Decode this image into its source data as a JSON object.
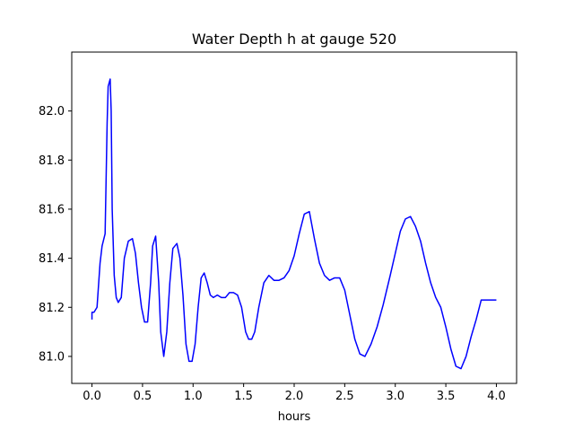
{
  "chart_data": {
    "type": "line",
    "title": "Water Depth h at gauge 520",
    "xlabel": "hours",
    "ylabel": "",
    "xlim": [
      -0.2,
      4.2
    ],
    "ylim": [
      80.89,
      82.24
    ],
    "xticks": [
      0.0,
      0.5,
      1.0,
      1.5,
      2.0,
      2.5,
      3.0,
      3.5,
      4.0
    ],
    "xtick_labels": [
      "0.0",
      "0.5",
      "1.0",
      "1.5",
      "2.0",
      "2.5",
      "3.0",
      "3.5",
      "4.0"
    ],
    "yticks": [
      81.0,
      81.2,
      81.4,
      81.6,
      81.8,
      82.0
    ],
    "ytick_labels": [
      "81.0",
      "81.2",
      "81.4",
      "81.6",
      "81.8",
      "82.0"
    ],
    "grid": false,
    "color": "#0000ff",
    "series": [
      {
        "name": "",
        "x": [
          0.0,
          0.0,
          0.02,
          0.05,
          0.08,
          0.1,
          0.13,
          0.15,
          0.16,
          0.18,
          0.19,
          0.2,
          0.22,
          0.24,
          0.26,
          0.29,
          0.32,
          0.36,
          0.4,
          0.43,
          0.46,
          0.49,
          0.52,
          0.55,
          0.58,
          0.6,
          0.63,
          0.66,
          0.68,
          0.71,
          0.74,
          0.77,
          0.8,
          0.84,
          0.87,
          0.9,
          0.93,
          0.96,
          0.99,
          1.02,
          1.05,
          1.08,
          1.11,
          1.14,
          1.17,
          1.2,
          1.24,
          1.28,
          1.32,
          1.36,
          1.4,
          1.44,
          1.48,
          1.52,
          1.55,
          1.58,
          1.61,
          1.65,
          1.7,
          1.75,
          1.8,
          1.85,
          1.9,
          1.95,
          2.0,
          2.05,
          2.1,
          2.15,
          2.2,
          2.25,
          2.3,
          2.35,
          2.4,
          2.45,
          2.5,
          2.55,
          2.6,
          2.65,
          2.7,
          2.76,
          2.82,
          2.88,
          2.95,
          3.0,
          3.05,
          3.1,
          3.15,
          3.2,
          3.25,
          3.3,
          3.35,
          3.4,
          3.45,
          3.5,
          3.55,
          3.6,
          3.65,
          3.7,
          3.75,
          3.8,
          3.85,
          3.9,
          3.95,
          4.0
        ],
        "y": [
          81.15,
          81.18,
          81.18,
          81.2,
          81.38,
          81.45,
          81.5,
          81.95,
          82.1,
          82.13,
          82.0,
          81.6,
          81.33,
          81.24,
          81.22,
          81.24,
          81.4,
          81.47,
          81.48,
          81.42,
          81.3,
          81.2,
          81.14,
          81.14,
          81.3,
          81.45,
          81.49,
          81.3,
          81.1,
          81.0,
          81.1,
          81.3,
          81.44,
          81.46,
          81.4,
          81.25,
          81.05,
          80.98,
          80.98,
          81.05,
          81.2,
          81.32,
          81.34,
          81.3,
          81.25,
          81.24,
          81.25,
          81.24,
          81.24,
          81.26,
          81.26,
          81.25,
          81.2,
          81.1,
          81.07,
          81.07,
          81.1,
          81.2,
          81.3,
          81.33,
          81.31,
          81.31,
          81.32,
          81.35,
          81.41,
          81.5,
          81.58,
          81.59,
          81.48,
          81.38,
          81.33,
          81.31,
          81.32,
          81.32,
          81.27,
          81.17,
          81.07,
          81.01,
          81.0,
          81.05,
          81.12,
          81.21,
          81.33,
          81.42,
          81.51,
          81.56,
          81.57,
          81.53,
          81.47,
          81.38,
          81.3,
          81.24,
          81.2,
          81.12,
          81.03,
          80.96,
          80.95,
          81.0,
          81.08,
          81.15,
          81.23,
          81.23,
          81.23,
          81.23
        ]
      }
    ]
  }
}
